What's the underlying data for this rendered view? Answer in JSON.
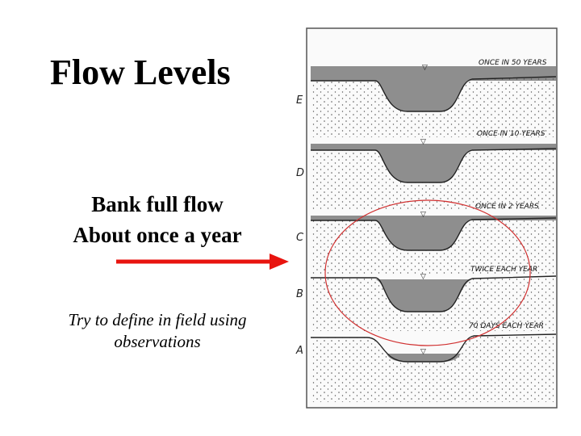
{
  "title": "Flow Levels",
  "bank_text": {
    "line1": "Bank full flow",
    "line2": "About once a year"
  },
  "note_text": {
    "line1": "Try to define in field using",
    "line2": "observations"
  },
  "figure": {
    "panels": [
      {
        "letter": "E",
        "frequency": "ONCE IN 50 YEARS"
      },
      {
        "letter": "D",
        "frequency": "ONCE IN 10 YEARS"
      },
      {
        "letter": "C",
        "frequency": "ONCE IN 2 YEARS"
      },
      {
        "letter": "B",
        "frequency": "TWICE EACH YEAR"
      },
      {
        "letter": "A",
        "frequency": "70 DAYS EACH YEAR"
      }
    ],
    "highlighted_panel": "C"
  },
  "colors": {
    "arrow": "#e8140f",
    "highlight_ellipse": "#d03030",
    "water": "#8e8e8e",
    "ground_dots": "#555555"
  }
}
